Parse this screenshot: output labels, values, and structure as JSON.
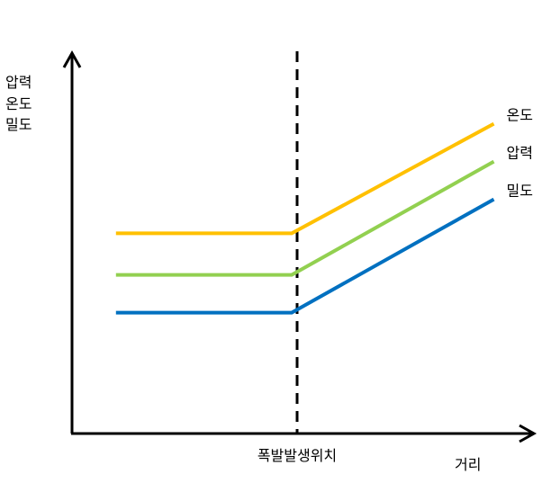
{
  "chart_data": {
    "type": "line",
    "ylabel_lines": [
      "압력",
      "온도",
      "밀도"
    ],
    "xlabel": "거리",
    "marker_label": "폭발발생위치",
    "x_domain": [
      0,
      10
    ],
    "y_domain": [
      0,
      10
    ],
    "marker_x": 5,
    "series": [
      {
        "name": "온도",
        "color": "#FFC000",
        "x": [
          1,
          5,
          9.6
        ],
        "y": [
          5.3,
          5.3,
          8.2
        ]
      },
      {
        "name": "압력",
        "color": "#92D050",
        "x": [
          1,
          5,
          9.6
        ],
        "y": [
          4.2,
          4.2,
          7.2
        ]
      },
      {
        "name": "밀도",
        "color": "#0070C0",
        "x": [
          1,
          5,
          9.6
        ],
        "y": [
          3.2,
          3.2,
          6.2
        ]
      }
    ],
    "grid": false
  }
}
